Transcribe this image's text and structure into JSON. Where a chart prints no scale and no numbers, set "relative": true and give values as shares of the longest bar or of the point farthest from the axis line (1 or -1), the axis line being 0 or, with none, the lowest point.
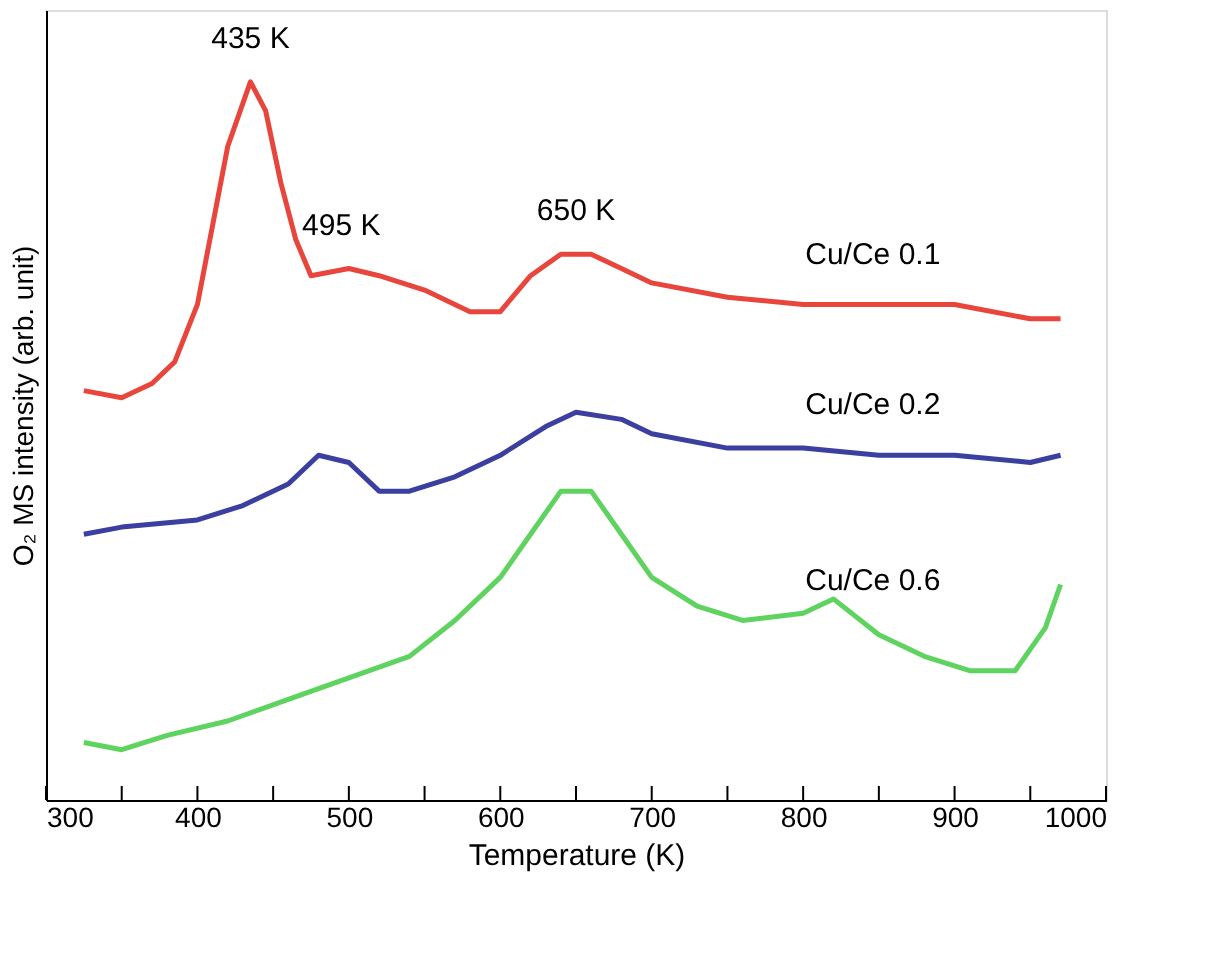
{
  "chart_data": {
    "type": "line",
    "relative": true,
    "xlabel": "Temperature (K)",
    "ylabel": "O₂ MS intensity (arb. unit)",
    "xlim": [
      300,
      1000
    ],
    "xticks": [
      300,
      {
        "value": 350,
        "label": null
      },
      400,
      {
        "value": 450,
        "label": null
      },
      500,
      {
        "value": 550,
        "label": null
      },
      600,
      {
        "value": 650,
        "label": null
      },
      700,
      {
        "value": 750,
        "label": null
      },
      800,
      {
        "value": 850,
        "label": null
      },
      900,
      {
        "value": 950,
        "label": null
      },
      1000
    ],
    "grid": false,
    "legend": false,
    "marker": "none",
    "line_style": "solid",
    "annotations": [
      {
        "text": "435 K",
        "x": 435,
        "y": 1.0
      },
      {
        "text": "495 K",
        "x": 495,
        "y": 0.74
      },
      {
        "text": "650 K",
        "x": 650,
        "y": 0.76
      }
    ],
    "series": [
      {
        "name": "Cu/Ce 0.1",
        "color": "#e8453c",
        "x": [
          325,
          350,
          370,
          385,
          400,
          410,
          420,
          430,
          435,
          445,
          455,
          465,
          475,
          500,
          520,
          550,
          580,
          600,
          620,
          640,
          660,
          680,
          700,
          750,
          800,
          850,
          900,
          950,
          970
        ],
        "values": [
          0.57,
          0.56,
          0.58,
          0.61,
          0.69,
          0.8,
          0.91,
          0.97,
          1.0,
          0.96,
          0.86,
          0.78,
          0.73,
          0.74,
          0.73,
          0.71,
          0.68,
          0.68,
          0.73,
          0.76,
          0.76,
          0.74,
          0.72,
          0.7,
          0.69,
          0.69,
          0.69,
          0.67,
          0.67
        ]
      },
      {
        "name": "Cu/Ce 0.2",
        "color": "#3a3fa0",
        "x": [
          325,
          350,
          400,
          430,
          460,
          480,
          500,
          520,
          540,
          570,
          600,
          630,
          650,
          680,
          700,
          750,
          800,
          850,
          900,
          950,
          970
        ],
        "values": [
          0.37,
          0.38,
          0.39,
          0.41,
          0.44,
          0.48,
          0.47,
          0.43,
          0.43,
          0.45,
          0.48,
          0.52,
          0.54,
          0.53,
          0.51,
          0.49,
          0.49,
          0.48,
          0.48,
          0.47,
          0.48
        ]
      },
      {
        "name": "Cu/Ce 0.6",
        "color": "#5fd35f",
        "x": [
          325,
          350,
          380,
          420,
          460,
          500,
          540,
          570,
          600,
          620,
          640,
          660,
          680,
          700,
          730,
          760,
          800,
          820,
          850,
          880,
          910,
          940,
          960,
          970
        ],
        "values": [
          0.08,
          0.07,
          0.09,
          0.11,
          0.14,
          0.17,
          0.2,
          0.25,
          0.31,
          0.37,
          0.43,
          0.43,
          0.37,
          0.31,
          0.27,
          0.25,
          0.26,
          0.28,
          0.23,
          0.2,
          0.18,
          0.18,
          0.24,
          0.3
        ]
      }
    ]
  }
}
